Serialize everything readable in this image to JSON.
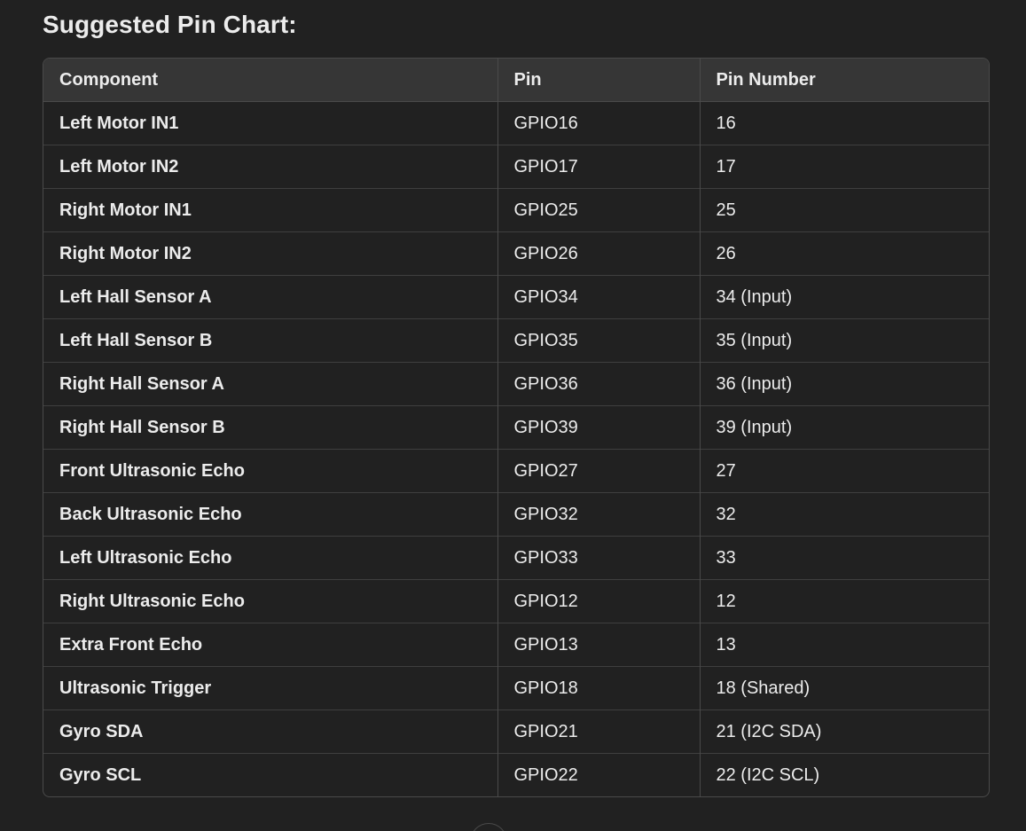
{
  "heading": "Suggested Pin Chart:",
  "table": {
    "headers": [
      "Component",
      "Pin",
      "Pin Number"
    ],
    "rows": [
      [
        "Left Motor IN1",
        "GPIO16",
        "16"
      ],
      [
        "Left Motor IN2",
        "GPIO17",
        "17"
      ],
      [
        "Right Motor IN1",
        "GPIO25",
        "25"
      ],
      [
        "Right Motor IN2",
        "GPIO26",
        "26"
      ],
      [
        "Left Hall Sensor A",
        "GPIO34",
        "34 (Input)"
      ],
      [
        "Left Hall Sensor B",
        "GPIO35",
        "35 (Input)"
      ],
      [
        "Right Hall Sensor A",
        "GPIO36",
        "36 (Input)"
      ],
      [
        "Right Hall Sensor B",
        "GPIO39",
        "39 (Input)"
      ],
      [
        "Front Ultrasonic Echo",
        "GPIO27",
        "27"
      ],
      [
        "Back Ultrasonic Echo",
        "GPIO32",
        "32"
      ],
      [
        "Left Ultrasonic Echo",
        "GPIO33",
        "33"
      ],
      [
        "Right Ultrasonic Echo",
        "GPIO12",
        "12"
      ],
      [
        "Extra Front Echo",
        "GPIO13",
        "13"
      ],
      [
        "Ultrasonic Trigger",
        "GPIO18",
        "18 (Shared)"
      ],
      [
        "Gyro SDA",
        "GPIO21",
        "21 (I2C SDA)"
      ],
      [
        "Gyro SCL",
        "GPIO22",
        "22 (I2C SCL)"
      ]
    ]
  },
  "colors": {
    "background": "#212121",
    "header_background": "#363636",
    "border": "#4a4a4a",
    "text": "#ececec"
  }
}
